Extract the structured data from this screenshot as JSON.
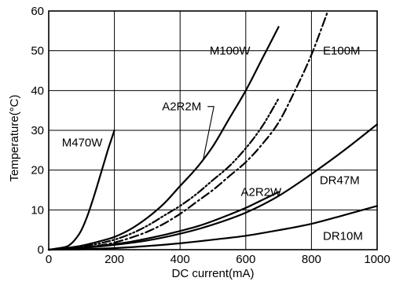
{
  "chart_data": {
    "type": "line",
    "title": "",
    "xlabel": "DC current(mA)",
    "ylabel": "Temperature(°C)",
    "xlim": [
      0,
      1000
    ],
    "ylim": [
      0,
      60
    ],
    "x_ticks": [
      "0",
      "200",
      "400",
      "600",
      "800",
      "1000"
    ],
    "y_ticks": [
      "0",
      "10",
      "20",
      "30",
      "40",
      "50",
      "60"
    ],
    "grid": true,
    "legend": "none",
    "series": [
      {
        "name": "M470W",
        "style": "solid",
        "x": [
          0,
          40,
          60,
          80,
          100,
          120,
          140,
          160,
          180,
          200
        ],
        "y": [
          0,
          0.5,
          1,
          2.5,
          5,
          9,
          14,
          19.5,
          25,
          30
        ]
      },
      {
        "name": "M100W",
        "style": "solid",
        "x": [
          0,
          50,
          100,
          150,
          200,
          250,
          300,
          350,
          400,
          450,
          500,
          550,
          600,
          650,
          700
        ],
        "y": [
          0,
          0.4,
          1,
          2,
          3.2,
          5.2,
          8,
          11.5,
          16,
          20.5,
          26,
          33,
          40,
          48,
          56
        ]
      },
      {
        "name": "E100M",
        "style": "dash-dot",
        "x": [
          0,
          50,
          100,
          150,
          200,
          250,
          300,
          350,
          400,
          450,
          500,
          550,
          600,
          650,
          700,
          750,
          800,
          850
        ],
        "y": [
          0,
          0.2,
          0.5,
          1,
          1.8,
          3,
          4.5,
          6.5,
          9,
          12,
          15,
          18.5,
          22,
          26.5,
          32,
          40,
          49,
          60
        ]
      },
      {
        "name": "A2R2M",
        "style": "dash-dot-dot",
        "x": [
          0,
          50,
          100,
          150,
          200,
          250,
          300,
          350,
          400,
          450,
          500,
          550,
          600,
          650,
          700
        ],
        "y": [
          0,
          0.3,
          0.8,
          1.5,
          2.5,
          4,
          6,
          8.5,
          11,
          14,
          17.5,
          21,
          25.5,
          31,
          38
        ]
      },
      {
        "name": "A2R2W",
        "style": "solid",
        "x": [
          0,
          50,
          100,
          150,
          200,
          250,
          300,
          350,
          400,
          450,
          500,
          550,
          600,
          650,
          700
        ],
        "y": [
          0,
          0.2,
          0.5,
          0.9,
          1.4,
          2,
          2.8,
          3.7,
          4.7,
          5.8,
          7.2,
          8.8,
          10.5,
          12.5,
          14.5
        ]
      },
      {
        "name": "DR47M",
        "style": "solid",
        "x": [
          0,
          100,
          200,
          300,
          400,
          500,
          600,
          700,
          800,
          900,
          1000
        ],
        "y": [
          0,
          0.4,
          1.2,
          2.3,
          4,
          6.3,
          9.3,
          13.5,
          19,
          25,
          31.5
        ]
      },
      {
        "name": "DR10M",
        "style": "solid",
        "x": [
          0,
          100,
          200,
          300,
          400,
          500,
          600,
          700,
          800,
          900,
          1000
        ],
        "y": [
          0,
          0.1,
          0.4,
          0.9,
          1.6,
          2.5,
          3.5,
          4.9,
          6.5,
          8.7,
          11
        ]
      }
    ],
    "annotations": [
      {
        "text": "M470W",
        "x": 40,
        "y": 26
      },
      {
        "text": "M100W",
        "x": 490,
        "y": 49
      },
      {
        "text": "E100M",
        "x": 835,
        "y": 49
      },
      {
        "text": "A2R2M",
        "x": 345,
        "y": 35
      },
      {
        "text": "A2R2W",
        "x": 585,
        "y": 13.5
      },
      {
        "text": "DR47M",
        "x": 825,
        "y": 16.5
      },
      {
        "text": "DR10M",
        "x": 835,
        "y": 2.5
      }
    ]
  }
}
